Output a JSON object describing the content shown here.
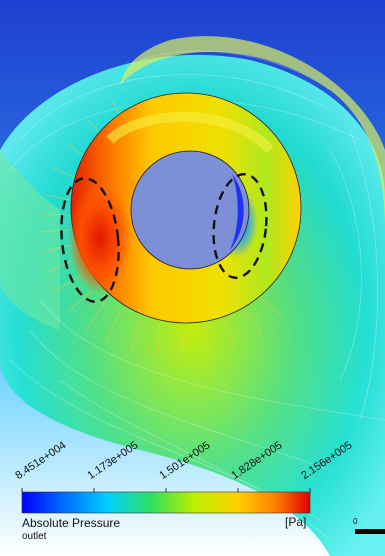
{
  "figure": {
    "legend": {
      "title": "Absolute Pressure",
      "subtitle": "outlet",
      "unit": "[Pa]",
      "tick_labels": [
        "8.451e+004",
        "1.173e+005",
        "1.501e+005",
        "1.828e+005",
        "2.156e+005"
      ],
      "colormap": [
        "#0000ff",
        "#00a0ff",
        "#00e0d0",
        "#30e060",
        "#c0f000",
        "#ffd000",
        "#ff8000",
        "#e00000"
      ]
    },
    "scale_bar": {
      "label": "0"
    },
    "colors": {
      "background_top": "#1f3fd0",
      "background_bottom": "#ffffff",
      "high_pressure": "#e32000",
      "low_pressure": "#1438ff",
      "hub_fill": "#7d8fd6"
    }
  }
}
